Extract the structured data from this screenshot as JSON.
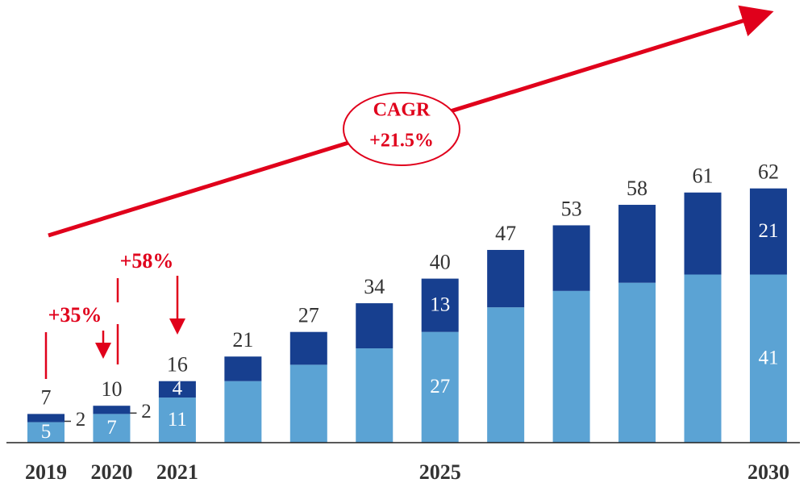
{
  "chart_data": {
    "type": "stacked_bar",
    "categories": [
      "2019",
      "2020",
      "2021",
      null,
      null,
      null,
      "2025",
      null,
      null,
      null,
      null,
      "2030"
    ],
    "series": [
      {
        "color": "#5ba3d4",
        "values": [
          5,
          7,
          11,
          15,
          19,
          23,
          27,
          33,
          37,
          39,
          41,
          41
        ],
        "value_labels": [
          "5",
          "7",
          "11",
          null,
          null,
          null,
          "27",
          null,
          null,
          null,
          null,
          "41"
        ]
      },
      {
        "color": "#173f8f",
        "values": [
          2,
          2,
          4,
          6,
          8,
          11,
          13,
          14,
          16,
          19,
          20,
          21
        ],
        "value_labels": [
          "2",
          "2",
          "4",
          null,
          null,
          null,
          "13",
          null,
          null,
          null,
          null,
          "21"
        ]
      }
    ],
    "totals": [
      7,
      10,
      16,
      21,
      27,
      34,
      40,
      47,
      53,
      58,
      61,
      62
    ],
    "ylim": [
      0,
      70
    ],
    "annotations": {
      "cagr_title": "CAGR",
      "cagr_value": "+21.5%",
      "growth_2020": "+35%",
      "growth_2021": "+58%"
    },
    "annotation_color": "#e0001b"
  }
}
